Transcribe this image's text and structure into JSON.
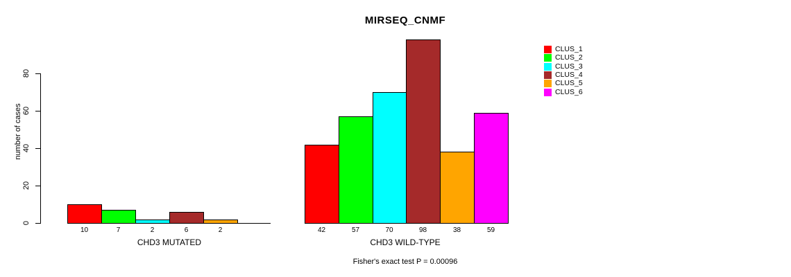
{
  "chart_data": {
    "type": "bar",
    "title": "MIRSEQ_CNMF",
    "ylabel": "number of cases",
    "ylim": [
      0,
      80
    ],
    "yticks": [
      "0",
      "20",
      "40",
      "60",
      "80"
    ],
    "grid": false,
    "legend_position": "right-outside",
    "clusters": [
      {
        "name": "CLUS_1",
        "color": "#FF0000"
      },
      {
        "name": "CLUS_2",
        "color": "#00FF00"
      },
      {
        "name": "CLUS_3",
        "color": "#00FFFF"
      },
      {
        "name": "CLUS_4",
        "color": "#A52A2A"
      },
      {
        "name": "CLUS_5",
        "color": "#FFA500"
      },
      {
        "name": "CLUS_6",
        "color": "#FF00FF"
      }
    ],
    "groups": [
      {
        "label": "CHD3 MUTATED",
        "values": [
          10,
          7,
          2,
          6,
          2,
          0
        ],
        "value_labels": [
          "10",
          "7",
          "2",
          "6",
          "2",
          ""
        ]
      },
      {
        "label": "CHD3 WILD-TYPE",
        "values": [
          42,
          57,
          70,
          98,
          38,
          59
        ],
        "value_labels": [
          "42",
          "57",
          "70",
          "98",
          "38",
          "59"
        ]
      }
    ],
    "annotation": "Fisher's exact test P = 0.00096"
  }
}
